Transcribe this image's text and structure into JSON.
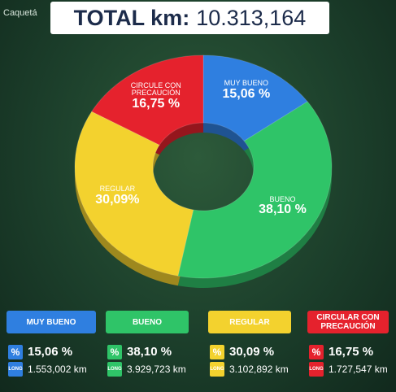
{
  "map_label": "Caquetá",
  "header": {
    "label": "TOTAL km:",
    "total": "10.313,164"
  },
  "chart_data": {
    "type": "pie",
    "donut": true,
    "categories": [
      "MUY BUENO",
      "BUENO",
      "REGULAR",
      "CIRCULE CON PRECAUCIÓN"
    ],
    "values": [
      15.06,
      38.1,
      30.09,
      16.75
    ],
    "value_labels": [
      "15,06 %",
      "38,10 %",
      "30,09%",
      "16,75 %"
    ],
    "colors": [
      "#2f7fe0",
      "#2fc468",
      "#f3d22e",
      "#e5222d"
    ]
  },
  "legend": {
    "labels": [
      "MUY BUENO",
      "BUENO",
      "REGULAR",
      "CIRCULAR CON PRECAUCIÓN"
    ],
    "percent_labels": [
      "15,06 %",
      "38,10 %",
      "30,09 %",
      "16,75 %"
    ],
    "km": [
      1553.002,
      3929.723,
      3102.892,
      1727.547
    ],
    "km_labels": [
      "1.553,002 km",
      "3.929,723 km",
      "3.102,892 km",
      "1.727,547 km"
    ],
    "icon_percent": "%",
    "icon_long": "LONG"
  }
}
